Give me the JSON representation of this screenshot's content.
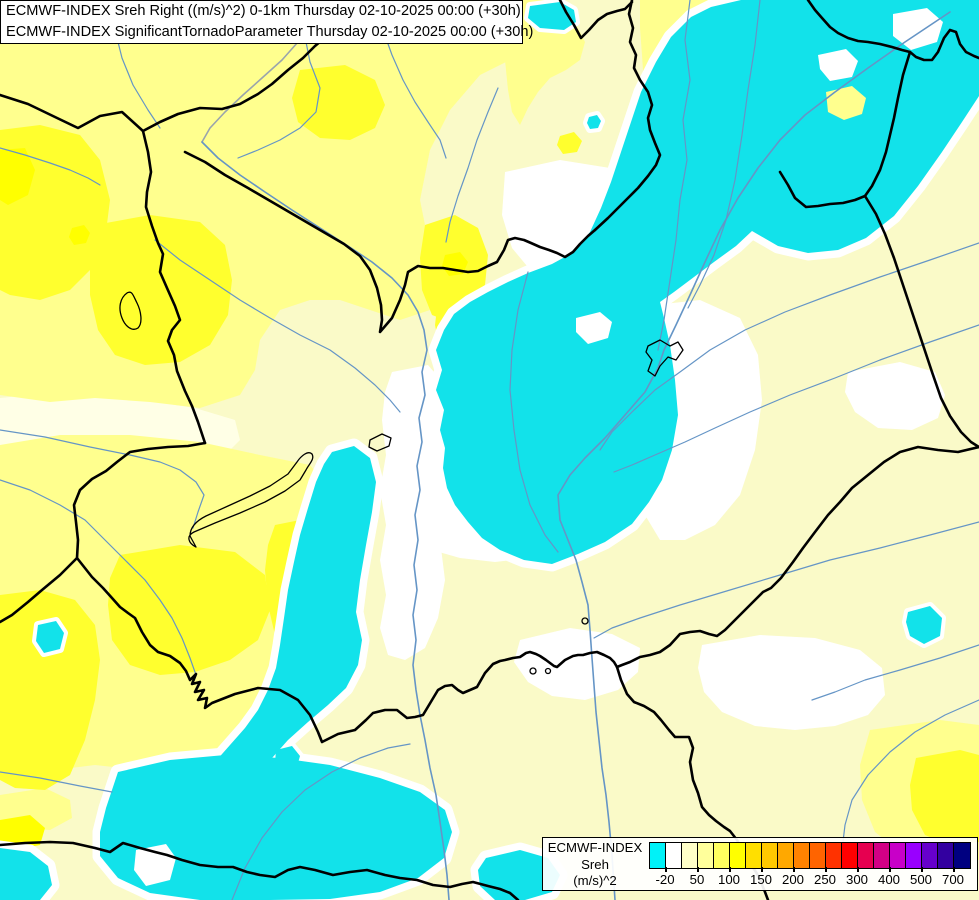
{
  "header": {
    "line1": "ECMWF-INDEX Sreh Right ((m/s)^2) 0-1km Thursday 02-10-2025 00:00 (+30h)",
    "line2": "ECMWF-INDEX SignificantTornadoParameter Thursday 02-10-2025 00:00 (+30h)"
  },
  "legend": {
    "title_line1": "ECMWF-INDEX",
    "title_line2": "Sreh",
    "title_line3": "(m/s)^2",
    "tick_labels": [
      "-20",
      "50",
      "100",
      "150",
      "200",
      "250",
      "300",
      "400",
      "500",
      "700"
    ],
    "cell_colors": [
      "#00F2F8",
      "#FFFFFF",
      "#FFFFC8",
      "#FFFF9B",
      "#FFFF5F",
      "#FFFF00",
      "#FFDF00",
      "#FFC800",
      "#FFA800",
      "#FF8200",
      "#FF6400",
      "#FF3200",
      "#FF0000",
      "#E60050",
      "#D20085",
      "#C800C8",
      "#9900FF",
      "#6600CC",
      "#3300A0",
      "#000080"
    ]
  },
  "map": {
    "colors": {
      "base": "#FAFAC8",
      "near_white": "#FFFFE6",
      "white": "#FFFFFF",
      "yellow_medium": "#FFFF8E",
      "yellow_bright": "#FFFF2E",
      "yellow_pure": "#FFFF00",
      "cyan": "#12E2EA",
      "river": "#6595C6",
      "river_gray": "#9AA4AC",
      "border": "#000000"
    }
  }
}
